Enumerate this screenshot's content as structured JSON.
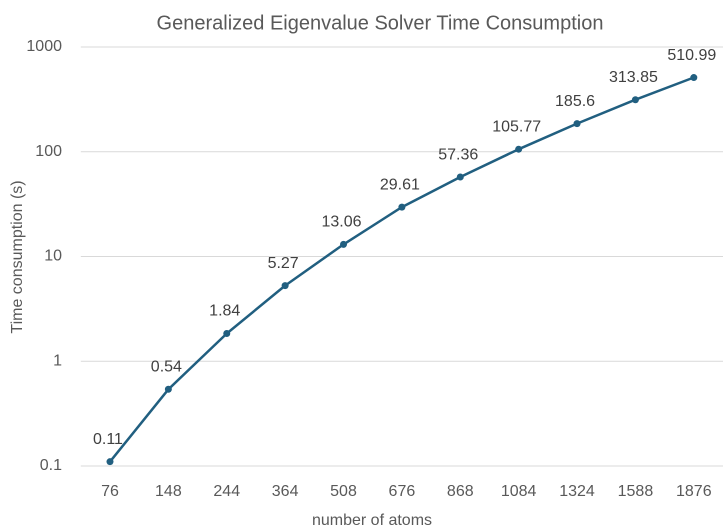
{
  "chart_data": {
    "type": "line",
    "title": "Generalized Eigenvalue Solver Time Consumption",
    "x_label": "number of atoms",
    "y_label": "Time consumption (s)",
    "categories": [
      "76",
      "148",
      "244",
      "364",
      "508",
      "676",
      "868",
      "1084",
      "1324",
      "1588",
      "1876"
    ],
    "series": [
      {
        "name": "Time consumption (s)",
        "color": "#215f80",
        "values": [
          0.11,
          0.54,
          1.84,
          5.27,
          13.06,
          29.61,
          57.36,
          105.77,
          185.6,
          313.85,
          510.99
        ]
      }
    ],
    "ylim": [
      0.1,
      1000
    ],
    "yticks": [
      0.1,
      1,
      10,
      100,
      1000
    ],
    "log_scale": true,
    "grid": true
  }
}
